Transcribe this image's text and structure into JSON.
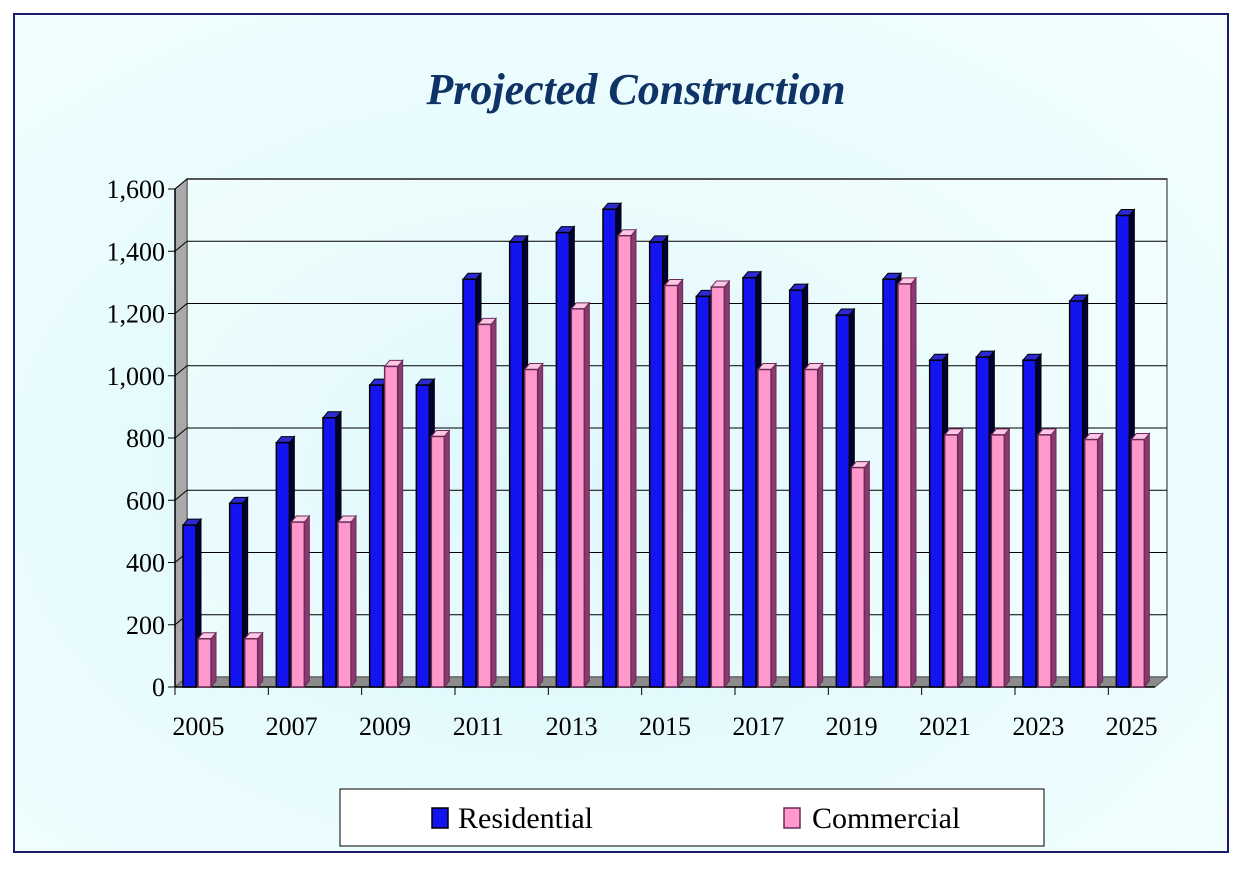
{
  "chart_data": {
    "type": "bar",
    "title": "Projected Construction",
    "categories": [
      "2005",
      "2006",
      "2007",
      "2008",
      "2009",
      "2010",
      "2011",
      "2012",
      "2013",
      "2014",
      "2015",
      "2016",
      "2017",
      "2018",
      "2019",
      "2020",
      "2021",
      "2022",
      "2023",
      "2024",
      "2025"
    ],
    "x_tick_labels": [
      "2005",
      "2007",
      "2009",
      "2011",
      "2013",
      "2015",
      "2017",
      "2019",
      "2021",
      "2023",
      "2025"
    ],
    "y_ticks": [
      0,
      200,
      400,
      600,
      800,
      1000,
      1200,
      1400,
      1600
    ],
    "y_tick_labels": [
      "0",
      "200",
      "400",
      "600",
      "800",
      "1,000",
      "1,200",
      "1,400",
      "1,600"
    ],
    "ylim": [
      0,
      1600
    ],
    "series": [
      {
        "name": "Residential",
        "color": "#1414f0",
        "values": [
          520,
          590,
          785,
          865,
          970,
          970,
          1310,
          1430,
          1460,
          1535,
          1430,
          1255,
          1315,
          1275,
          1195,
          1310,
          1050,
          1060,
          1050,
          1240,
          1515
        ]
      },
      {
        "name": "Commercial",
        "color": "#ff99cc",
        "values": [
          155,
          155,
          530,
          530,
          1030,
          805,
          1165,
          1020,
          1215,
          1450,
          1290,
          1285,
          1020,
          1020,
          705,
          1295,
          810,
          810,
          810,
          795,
          795
        ]
      }
    ],
    "grid": true,
    "legend_position": "bottom"
  }
}
